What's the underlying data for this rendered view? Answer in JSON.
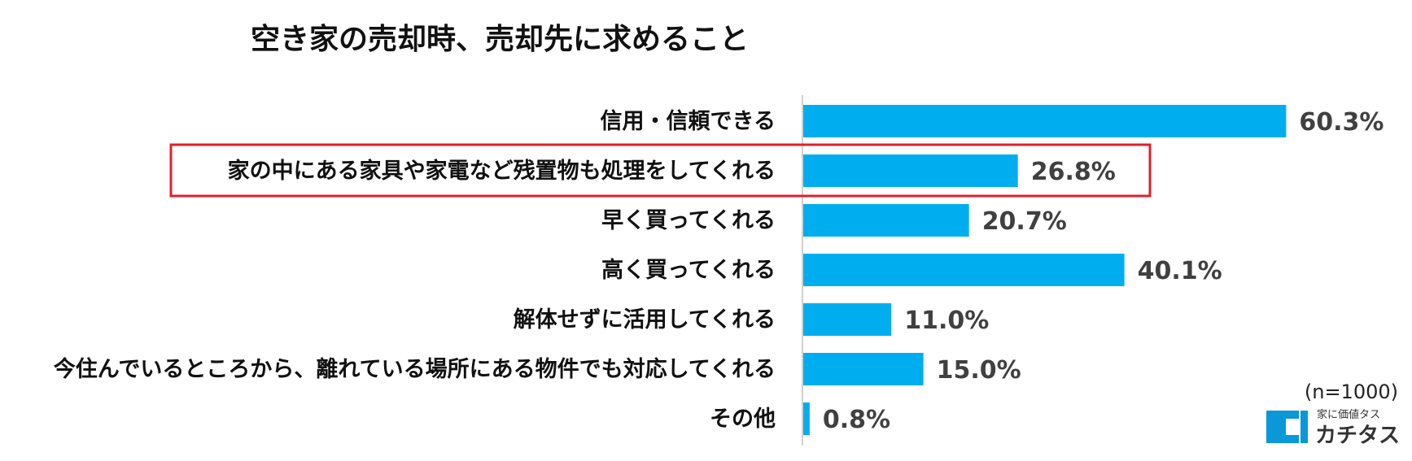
{
  "chart_data": {
    "type": "bar",
    "orientation": "horizontal",
    "title": "空き家の売却時、売却先に求めること",
    "categories": [
      "信用・信頼できる",
      "家の中にある家具や家電など残置物も処理をしてくれる",
      "早く買ってくれる",
      "高く買ってくれる",
      "解体せずに活用してくれる",
      "今住んでいるところから、離れている場所にある物件でも対応してくれる",
      "その他"
    ],
    "values": [
      60.3,
      26.8,
      20.7,
      40.1,
      11.0,
      15.0,
      0.8
    ],
    "value_labels": [
      "60.3%",
      "26.8%",
      "20.7%",
      "40.1%",
      "11.0%",
      "15.0%",
      "0.8%"
    ],
    "highlighted_index": 1,
    "xlim": [
      0,
      70
    ],
    "grid": false,
    "legend": "none",
    "bar_color": "#00aeef",
    "highlight_color": "#e0202a",
    "annotations": [
      "(n=1000)"
    ]
  },
  "footer": {
    "sample_size": "(n=1000)"
  },
  "logo": {
    "tagline": "家に価値タス",
    "name": "カチタス",
    "accent_color": "#0a98d8"
  }
}
